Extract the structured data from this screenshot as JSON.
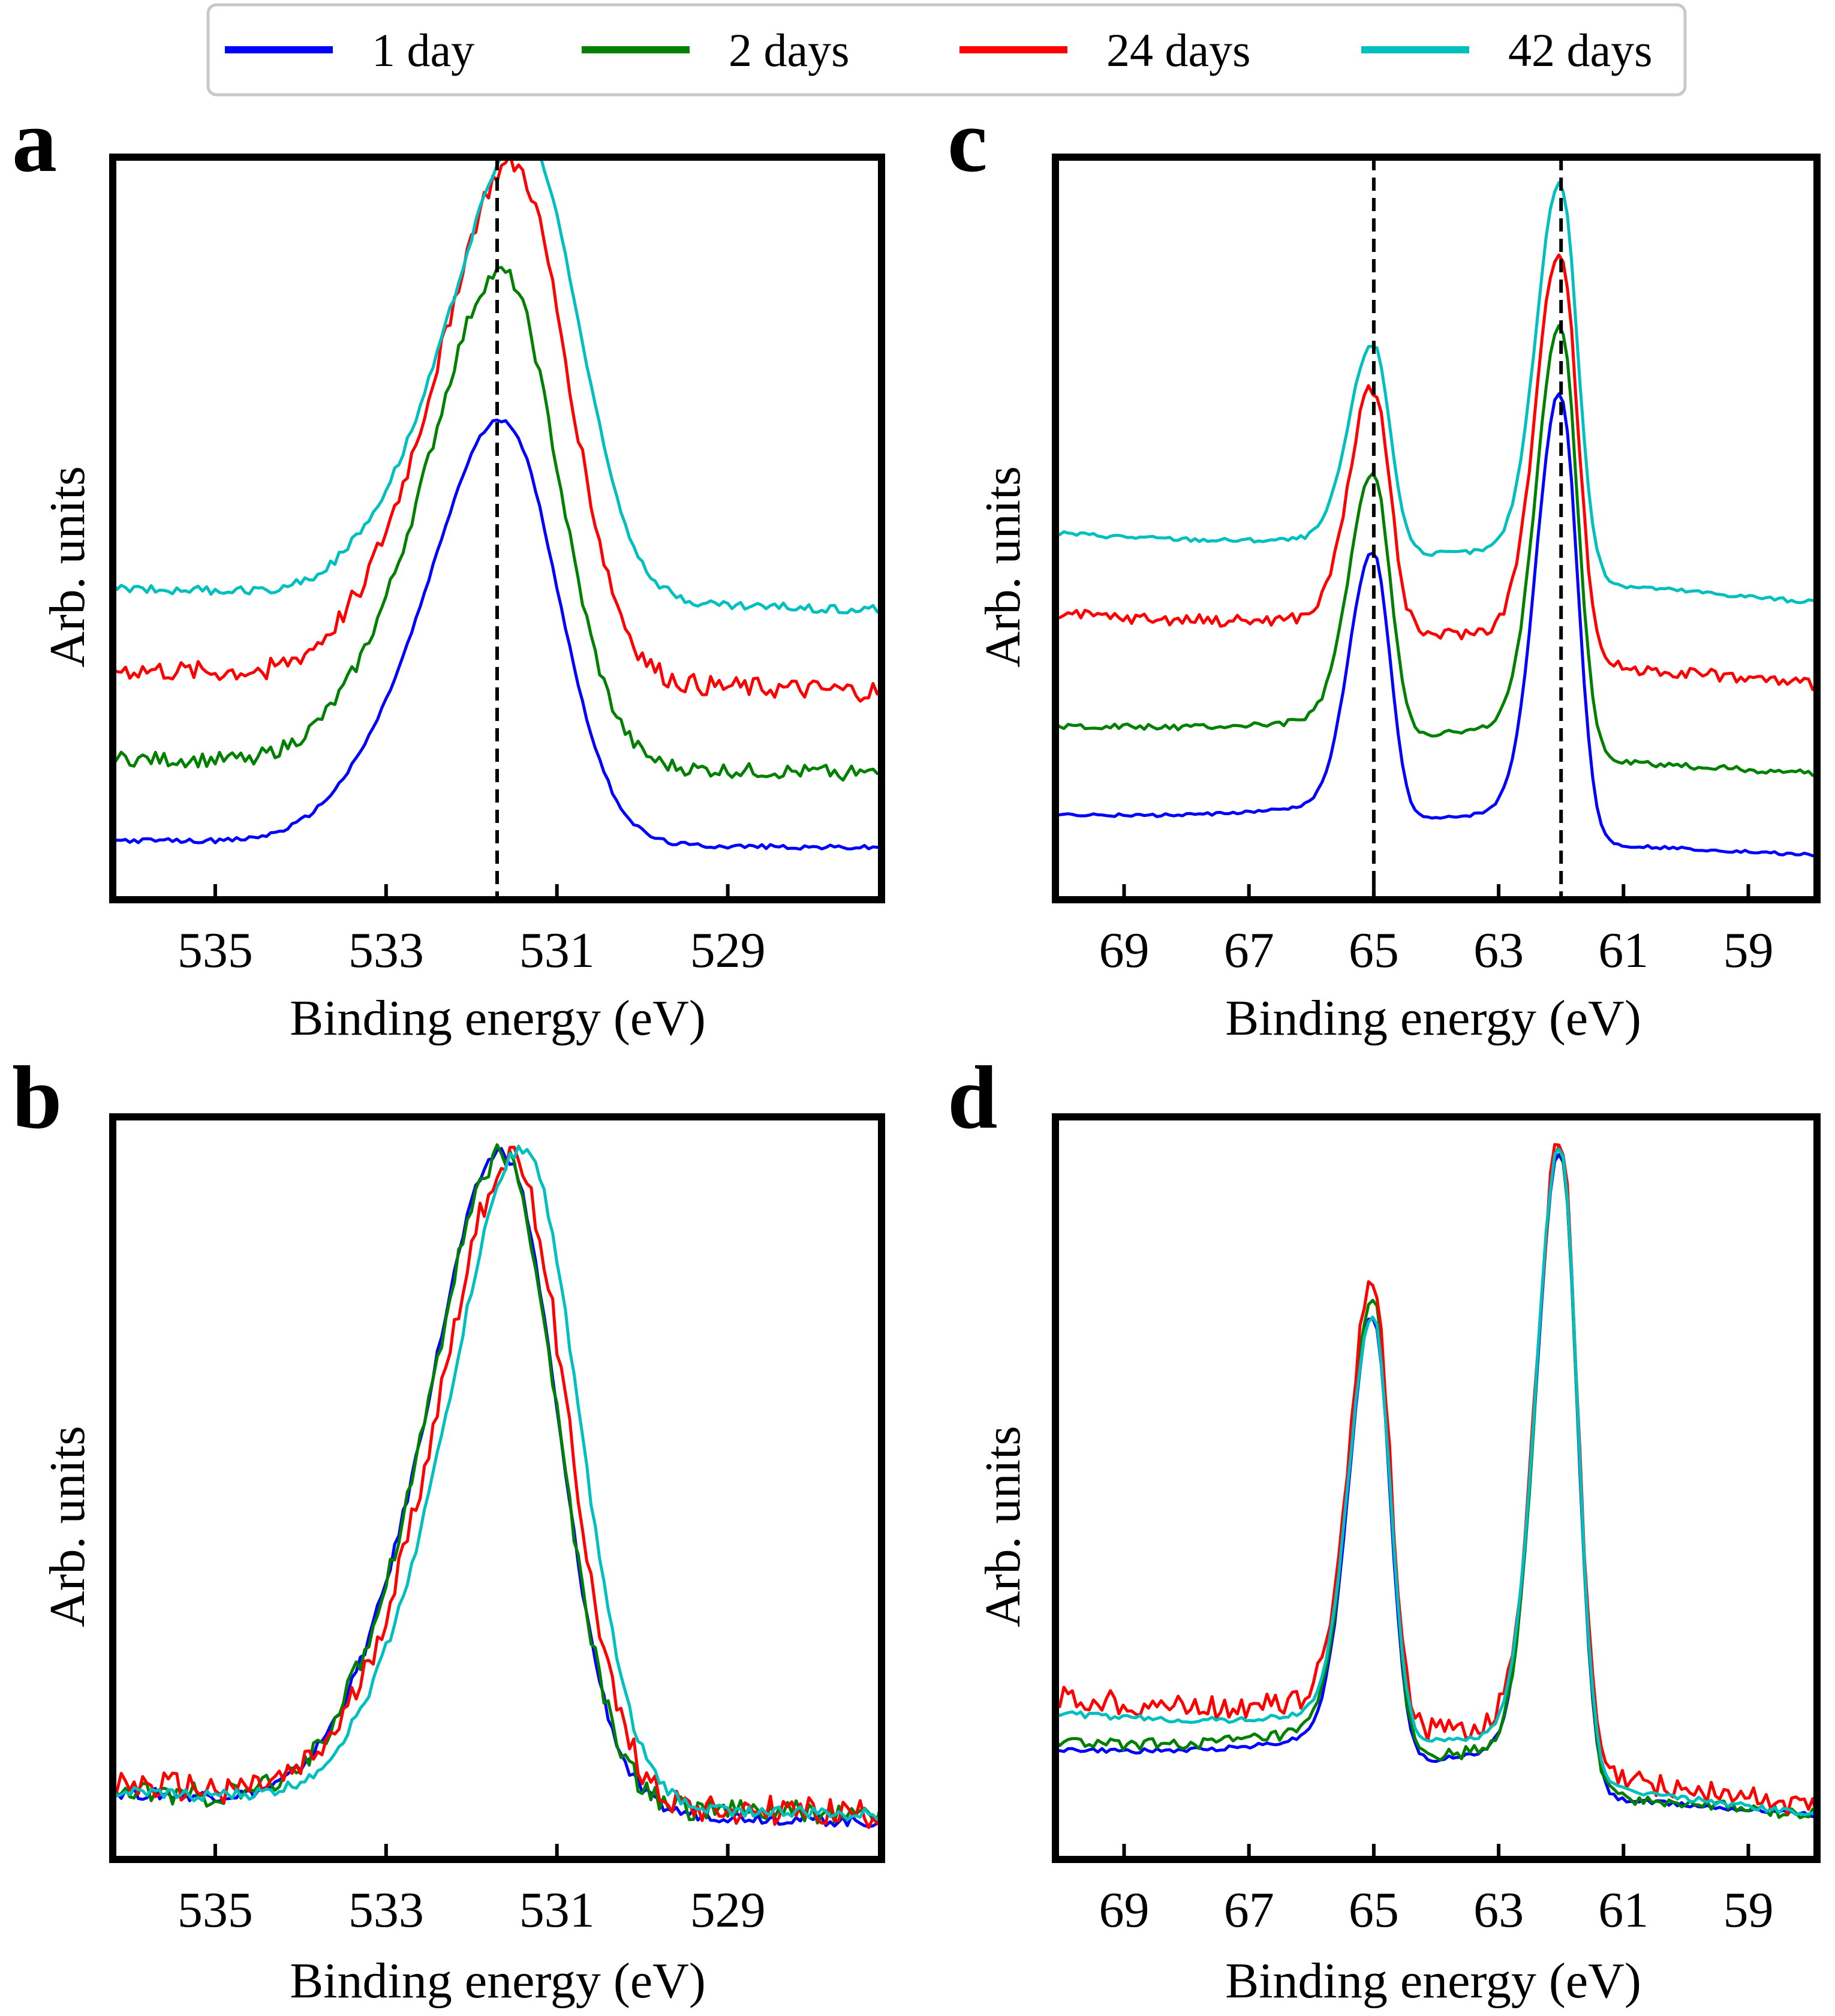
{
  "figure": {
    "legend": [
      {
        "label": "1 day",
        "color": "#0000ff"
      },
      {
        "label": "2 days",
        "color": "#008000"
      },
      {
        "label": "24 days",
        "color": "#ff0000"
      },
      {
        "label": "42 days",
        "color": "#00bfbf"
      }
    ]
  },
  "chart_data": [
    {
      "panel": "a",
      "type": "line",
      "xlabel": "Binding energy (eV)",
      "ylabel": "Arb. units",
      "xlim": [
        536.2,
        527.2
      ],
      "ylim": [
        0,
        1
      ],
      "xticks": [
        535,
        533,
        531,
        529
      ],
      "xtick_labels": [
        "535",
        "533",
        "531",
        "529"
      ],
      "vlines": [
        531.7
      ],
      "peaks": [
        531.6
      ],
      "series": [
        {
          "name": "1 day",
          "color": "#0000ff",
          "baseline": 0.08,
          "baseline_end": 0.07,
          "amplitudes": [
            0.55
          ],
          "noise": 0.003
        },
        {
          "name": "2 days",
          "color": "#008000",
          "baseline": 0.19,
          "baseline_end": 0.17,
          "amplitudes": [
            0.64
          ],
          "noise": 0.01
        },
        {
          "name": "24 days",
          "color": "#ff0000",
          "baseline": 0.31,
          "baseline_end": 0.28,
          "amplitudes": [
            0.67
          ],
          "noise": 0.014
        },
        {
          "name": "42 days",
          "color": "#00bfbf",
          "baseline": 0.42,
          "baseline_end": 0.39,
          "amplitudes": [
            0.6
          ],
          "noise": 0.006
        }
      ]
    },
    {
      "panel": "b",
      "type": "line",
      "xlabel": "Binding energy (eV)",
      "ylabel": "Arb. units",
      "xlim": [
        536.2,
        527.2
      ],
      "ylim": [
        0,
        1
      ],
      "xticks": [
        535,
        533,
        531,
        529
      ],
      "xtick_labels": [
        "535",
        "533",
        "531",
        "529"
      ],
      "vlines": [],
      "peaks": [
        531.6
      ],
      "series": [
        {
          "name": "1 day",
          "color": "#0000ff",
          "baseline": 0.09,
          "baseline_end": 0.05,
          "amplitudes": [
            0.85
          ],
          "noise": 0.008
        },
        {
          "name": "2 days",
          "color": "#008000",
          "baseline": 0.09,
          "baseline_end": 0.06,
          "amplitudes": [
            0.84
          ],
          "noise": 0.016
        },
        {
          "name": "24 days",
          "color": "#ff0000",
          "baseline": 0.1,
          "baseline_end": 0.06,
          "amplitudes": [
            0.83
          ],
          "noise": 0.02
        },
        {
          "name": "42 days",
          "color": "#00bfbf",
          "baseline": 0.09,
          "baseline_end": 0.06,
          "amplitudes": [
            0.85
          ],
          "noise": 0.008
        }
      ]
    },
    {
      "panel": "c",
      "type": "line",
      "xlabel": "Binding energy (eV)",
      "ylabel": "Arb. units",
      "xlim": [
        70.1,
        57.9
      ],
      "ylim": [
        0,
        1
      ],
      "xticks": [
        69,
        67,
        65,
        63,
        61,
        59
      ],
      "xtick_labels": [
        "69",
        "67",
        "65",
        "63",
        "61",
        "59"
      ],
      "vlines": [
        65.0,
        62.0
      ],
      "peaks": [
        65.0,
        62.0
      ],
      "series": [
        {
          "name": "1 day",
          "color": "#0000ff",
          "baseline": 0.11,
          "baseline_end": 0.06,
          "amplitudes": [
            0.36,
            0.6
          ],
          "noise": 0.002
        },
        {
          "name": "2 days",
          "color": "#008000",
          "baseline": 0.23,
          "baseline_end": 0.17,
          "amplitudes": [
            0.35,
            0.58
          ],
          "noise": 0.004
        },
        {
          "name": "24 days",
          "color": "#ff0000",
          "baseline": 0.38,
          "baseline_end": 0.29,
          "amplitudes": [
            0.33,
            0.55
          ],
          "noise": 0.008
        },
        {
          "name": "42 days",
          "color": "#00bfbf",
          "baseline": 0.49,
          "baseline_end": 0.4,
          "amplitudes": [
            0.28,
            0.53
          ],
          "noise": 0.003
        }
      ]
    },
    {
      "panel": "d",
      "type": "line",
      "xlabel": "Binding energy (eV)",
      "ylabel": "Arb. units",
      "xlim": [
        70.1,
        57.9
      ],
      "ylim": [
        0,
        1
      ],
      "xticks": [
        69,
        67,
        65,
        63,
        61,
        59
      ],
      "xtick_labels": [
        "69",
        "67",
        "65",
        "63",
        "61",
        "59"
      ],
      "vlines": [],
      "peaks": [
        65.0,
        62.0
      ],
      "series": [
        {
          "name": "1 day",
          "color": "#0000ff",
          "baseline": 0.14,
          "baseline_end": 0.06,
          "amplitudes": [
            0.6,
            0.86
          ],
          "noise": 0.003
        },
        {
          "name": "2 days",
          "color": "#008000",
          "baseline": 0.15,
          "baseline_end": 0.06,
          "amplitudes": [
            0.62,
            0.86
          ],
          "noise": 0.008
        },
        {
          "name": "24 days",
          "color": "#ff0000",
          "baseline": 0.21,
          "baseline_end": 0.07,
          "amplitudes": [
            0.6,
            0.84
          ],
          "noise": 0.016
        },
        {
          "name": "42 days",
          "color": "#00bfbf",
          "baseline": 0.19,
          "baseline_end": 0.06,
          "amplitudes": [
            0.57,
            0.85
          ],
          "noise": 0.004
        }
      ]
    }
  ]
}
